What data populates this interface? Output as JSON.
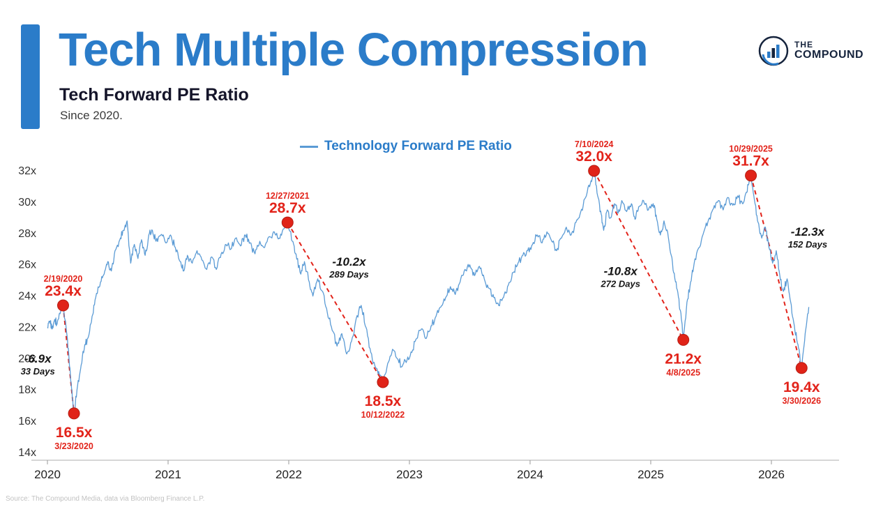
{
  "header": {
    "title": "Tech Multiple Compression",
    "subtitle": "Tech Forward PE Ratio",
    "tagline": "Since 2020.",
    "logo": {
      "line1": "THE",
      "line2": "COMPOUND"
    }
  },
  "legend": {
    "label": "Technology Forward PE Ratio"
  },
  "footer": {
    "source": "Source: The Compound Media, data via Bloomberg Finance L.P."
  },
  "colors": {
    "accent_blue": "#2b7cc9",
    "line_blue": "#5b9bd5",
    "annotation_red": "#e2231a",
    "dot_red": "#e02318",
    "navy": "#16243d",
    "axis_gray": "#c9c9c9"
  },
  "chart_data": {
    "type": "line",
    "title": "Tech Forward PE Ratio",
    "subtitle": "Since 2020.",
    "series_name": "Technology Forward PE Ratio",
    "xlim": [
      2020,
      2026.35
    ],
    "ylim": [
      14,
      32
    ],
    "grid": false,
    "legend_position": "top-center",
    "y_ticks": [
      {
        "v": 32,
        "label": "32x"
      },
      {
        "v": 30,
        "label": "30x"
      },
      {
        "v": 28,
        "label": "28x"
      },
      {
        "v": 26,
        "label": "26x"
      },
      {
        "v": 24,
        "label": "24x"
      },
      {
        "v": 22,
        "label": "22x"
      },
      {
        "v": 20,
        "label": "20x"
      },
      {
        "v": 18,
        "label": "18x"
      },
      {
        "v": 16,
        "label": "16x"
      },
      {
        "v": 14,
        "label": "14x"
      }
    ],
    "x_ticks": [
      {
        "v": 2020,
        "label": "2020"
      },
      {
        "v": 2021,
        "label": "2021"
      },
      {
        "v": 2022,
        "label": "2022"
      },
      {
        "v": 2023,
        "label": "2023"
      },
      {
        "v": 2024,
        "label": "2024"
      },
      {
        "v": 2025,
        "label": "2025"
      },
      {
        "v": 2026,
        "label": "2026"
      }
    ],
    "points": [
      [
        2020.0,
        22.0
      ],
      [
        2020.02,
        22.4
      ],
      [
        2020.04,
        21.9
      ],
      [
        2020.06,
        22.5
      ],
      [
        2020.08,
        22.2
      ],
      [
        2020.1,
        22.9
      ],
      [
        2020.13,
        23.4
      ],
      [
        2020.16,
        21.6
      ],
      [
        2020.18,
        19.9
      ],
      [
        2020.2,
        18.1
      ],
      [
        2020.22,
        16.5
      ],
      [
        2020.25,
        18.3
      ],
      [
        2020.28,
        19.6
      ],
      [
        2020.31,
        20.9
      ],
      [
        2020.34,
        21.4
      ],
      [
        2020.37,
        22.7
      ],
      [
        2020.4,
        23.9
      ],
      [
        2020.44,
        24.9
      ],
      [
        2020.47,
        25.4
      ],
      [
        2020.5,
        26.2
      ],
      [
        2020.53,
        25.6
      ],
      [
        2020.56,
        26.9
      ],
      [
        2020.6,
        27.6
      ],
      [
        2020.63,
        28.2
      ],
      [
        2020.66,
        28.8
      ],
      [
        2020.69,
        26.1
      ],
      [
        2020.72,
        27.3
      ],
      [
        2020.75,
        26.4
      ],
      [
        2020.78,
        27.6
      ],
      [
        2020.81,
        26.6
      ],
      [
        2020.84,
        27.9
      ],
      [
        2020.87,
        28.2
      ],
      [
        2020.9,
        27.5
      ],
      [
        2020.94,
        27.9
      ],
      [
        2020.98,
        27.4
      ],
      [
        2021.02,
        27.9
      ],
      [
        2021.06,
        27.1
      ],
      [
        2021.1,
        26.2
      ],
      [
        2021.13,
        25.6
      ],
      [
        2021.16,
        26.6
      ],
      [
        2021.2,
        26.1
      ],
      [
        2021.24,
        26.9
      ],
      [
        2021.28,
        26.3
      ],
      [
        2021.32,
        25.7
      ],
      [
        2021.36,
        26.5
      ],
      [
        2021.4,
        25.7
      ],
      [
        2021.44,
        26.7
      ],
      [
        2021.48,
        27.3
      ],
      [
        2021.52,
        27.0
      ],
      [
        2021.56,
        27.7
      ],
      [
        2021.6,
        27.2
      ],
      [
        2021.64,
        27.9
      ],
      [
        2021.68,
        27.4
      ],
      [
        2021.72,
        26.7
      ],
      [
        2021.76,
        27.5
      ],
      [
        2021.8,
        27.1
      ],
      [
        2021.84,
        27.8
      ],
      [
        2021.88,
        28.1
      ],
      [
        2021.92,
        27.7
      ],
      [
        2021.96,
        28.3
      ],
      [
        2021.99,
        28.7
      ],
      [
        2022.03,
        27.5
      ],
      [
        2022.06,
        26.7
      ],
      [
        2022.1,
        25.4
      ],
      [
        2022.13,
        26.2
      ],
      [
        2022.17,
        24.9
      ],
      [
        2022.2,
        24.0
      ],
      [
        2022.24,
        25.1
      ],
      [
        2022.28,
        24.3
      ],
      [
        2022.32,
        22.9
      ],
      [
        2022.36,
        21.8
      ],
      [
        2022.4,
        20.8
      ],
      [
        2022.44,
        21.6
      ],
      [
        2022.48,
        20.3
      ],
      [
        2022.52,
        21.1
      ],
      [
        2022.56,
        22.6
      ],
      [
        2022.6,
        23.4
      ],
      [
        2022.64,
        22.0
      ],
      [
        2022.68,
        20.4
      ],
      [
        2022.72,
        19.4
      ],
      [
        2022.75,
        19.0
      ],
      [
        2022.78,
        18.5
      ],
      [
        2022.82,
        19.7
      ],
      [
        2022.86,
        20.6
      ],
      [
        2022.9,
        20.0
      ],
      [
        2022.94,
        19.5
      ],
      [
        2022.98,
        19.9
      ],
      [
        2023.02,
        20.4
      ],
      [
        2023.06,
        21.3
      ],
      [
        2023.1,
        21.9
      ],
      [
        2023.14,
        21.3
      ],
      [
        2023.18,
        22.1
      ],
      [
        2023.22,
        22.7
      ],
      [
        2023.26,
        23.3
      ],
      [
        2023.3,
        23.9
      ],
      [
        2023.34,
        24.6
      ],
      [
        2023.38,
        24.1
      ],
      [
        2023.42,
        24.9
      ],
      [
        2023.46,
        25.7
      ],
      [
        2023.5,
        26.0
      ],
      [
        2023.54,
        25.3
      ],
      [
        2023.58,
        25.9
      ],
      [
        2023.62,
        25.1
      ],
      [
        2023.66,
        24.5
      ],
      [
        2023.7,
        23.9
      ],
      [
        2023.74,
        23.4
      ],
      [
        2023.78,
        23.9
      ],
      [
        2023.82,
        24.7
      ],
      [
        2023.86,
        25.5
      ],
      [
        2023.9,
        26.1
      ],
      [
        2023.94,
        26.6
      ],
      [
        2023.98,
        26.9
      ],
      [
        2024.02,
        27.3
      ],
      [
        2024.06,
        27.9
      ],
      [
        2024.1,
        27.4
      ],
      [
        2024.14,
        28.1
      ],
      [
        2024.18,
        27.5
      ],
      [
        2024.22,
        26.9
      ],
      [
        2024.26,
        27.7
      ],
      [
        2024.3,
        28.4
      ],
      [
        2024.34,
        27.9
      ],
      [
        2024.38,
        28.7
      ],
      [
        2024.42,
        29.4
      ],
      [
        2024.46,
        30.3
      ],
      [
        2024.5,
        31.2
      ],
      [
        2024.53,
        32.0
      ],
      [
        2024.56,
        30.4
      ],
      [
        2024.59,
        29.2
      ],
      [
        2024.61,
        28.2
      ],
      [
        2024.64,
        29.5
      ],
      [
        2024.67,
        29.0
      ],
      [
        2024.7,
        29.9
      ],
      [
        2024.73,
        29.3
      ],
      [
        2024.76,
        30.1
      ],
      [
        2024.8,
        29.4
      ],
      [
        2024.84,
        29.9
      ],
      [
        2024.87,
        28.9
      ],
      [
        2024.9,
        29.7
      ],
      [
        2024.94,
        30.1
      ],
      [
        2024.98,
        29.5
      ],
      [
        2025.02,
        29.9
      ],
      [
        2025.05,
        28.9
      ],
      [
        2025.08,
        27.9
      ],
      [
        2025.11,
        28.8
      ],
      [
        2025.14,
        28.1
      ],
      [
        2025.17,
        26.6
      ],
      [
        2025.2,
        25.1
      ],
      [
        2025.23,
        23.9
      ],
      [
        2025.25,
        22.9
      ],
      [
        2025.27,
        21.2
      ],
      [
        2025.3,
        23.6
      ],
      [
        2025.33,
        24.9
      ],
      [
        2025.36,
        26.1
      ],
      [
        2025.4,
        27.1
      ],
      [
        2025.44,
        28.1
      ],
      [
        2025.48,
        28.9
      ],
      [
        2025.52,
        29.6
      ],
      [
        2025.56,
        30.1
      ],
      [
        2025.6,
        29.5
      ],
      [
        2025.64,
        30.3
      ],
      [
        2025.68,
        29.8
      ],
      [
        2025.72,
        30.4
      ],
      [
        2025.76,
        29.9
      ],
      [
        2025.79,
        30.6
      ],
      [
        2025.81,
        31.1
      ],
      [
        2025.83,
        31.7
      ],
      [
        2025.86,
        30.1
      ],
      [
        2025.89,
        28.7
      ],
      [
        2025.92,
        27.7
      ],
      [
        2025.95,
        28.4
      ],
      [
        2025.98,
        27.1
      ],
      [
        2026.01,
        26.1
      ],
      [
        2026.04,
        26.9
      ],
      [
        2026.07,
        25.3
      ],
      [
        2026.1,
        24.3
      ],
      [
        2026.13,
        25.1
      ],
      [
        2026.16,
        23.6
      ],
      [
        2026.19,
        22.1
      ],
      [
        2026.22,
        20.9
      ],
      [
        2026.25,
        19.4
      ],
      [
        2026.28,
        21.6
      ],
      [
        2026.31,
        23.3
      ]
    ],
    "drawdowns": [
      {
        "peak": {
          "date": "2/19/2020",
          "label": "23.4x",
          "x": 2020.13,
          "y": 23.4,
          "label_pos": "above"
        },
        "trough": {
          "date": "3/23/2020",
          "label": "16.5x",
          "x": 2020.22,
          "y": 16.5,
          "label_pos": "below"
        },
        "change": "-6.9x",
        "duration": "33 Days",
        "note_x": 2019.92,
        "note_y": 19.75
      },
      {
        "peak": {
          "date": "12/27/2021",
          "label": "28.7x",
          "x": 2021.99,
          "y": 28.7,
          "label_pos": "above"
        },
        "trough": {
          "date": "10/12/2022",
          "label": "18.5x",
          "x": 2022.78,
          "y": 18.5,
          "label_pos": "below"
        },
        "change": "-10.2x",
        "duration": "289 Days",
        "note_x": 2022.5,
        "note_y": 25.95
      },
      {
        "peak": {
          "date": "7/10/2024",
          "label": "32.0x",
          "x": 2024.53,
          "y": 32.0,
          "label_pos": "above"
        },
        "trough": {
          "date": "4/8/2025",
          "label": "21.2x",
          "x": 2025.27,
          "y": 21.2,
          "label_pos": "below"
        },
        "change": "-10.8x",
        "duration": "272 Days",
        "note_x": 2024.75,
        "note_y": 25.35
      },
      {
        "peak": {
          "date": "10/29/2025",
          "label": "31.7x",
          "x": 2025.83,
          "y": 31.7,
          "label_pos": "above"
        },
        "trough": {
          "date": "3/30/2026",
          "label": "19.4x",
          "x": 2026.25,
          "y": 19.4,
          "label_pos": "below"
        },
        "change": "-12.3x",
        "duration": "152 Days",
        "note_x": 2026.3,
        "note_y": 27.85
      }
    ]
  }
}
